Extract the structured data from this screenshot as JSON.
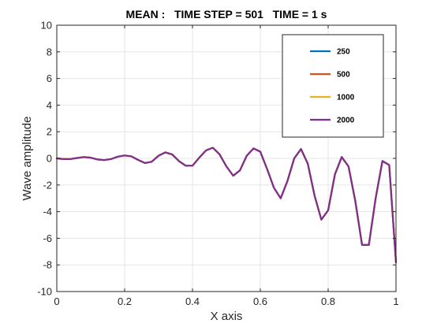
{
  "chart_data": {
    "type": "line",
    "title": "MEAN :   TIME STEP = 501   TIME = 1 s",
    "xlabel": "X axis",
    "ylabel": "Wave amplitude",
    "xlim": [
      0,
      1
    ],
    "ylim": [
      -10,
      10
    ],
    "xticks": [
      0,
      0.2,
      0.4,
      0.6,
      0.8,
      1
    ],
    "xtick_labels": [
      "0",
      "0.2",
      "0.4",
      "0.6",
      "0.8",
      "1"
    ],
    "yticks": [
      -10,
      -8,
      -6,
      -4,
      -2,
      0,
      2,
      4,
      6,
      8,
      10
    ],
    "ytick_labels": [
      "-10",
      "-8",
      "-6",
      "-4",
      "-2",
      "0",
      "2",
      "4",
      "6",
      "8",
      "10"
    ],
    "grid": true,
    "legend_position": "top-right",
    "x": [
      0,
      0.02,
      0.04,
      0.06,
      0.08,
      0.1,
      0.12,
      0.14,
      0.16,
      0.18,
      0.2,
      0.22,
      0.24,
      0.26,
      0.28,
      0.3,
      0.32,
      0.34,
      0.36,
      0.38,
      0.4,
      0.42,
      0.44,
      0.46,
      0.48,
      0.5,
      0.52,
      0.54,
      0.56,
      0.58,
      0.6,
      0.62,
      0.64,
      0.66,
      0.68,
      0.7,
      0.72,
      0.74,
      0.76,
      0.78,
      0.8,
      0.82,
      0.84,
      0.86,
      0.88,
      0.9,
      0.92,
      0.94,
      0.96,
      0.98,
      1.0
    ],
    "series": [
      {
        "name": "250",
        "color": "#0072BD",
        "values": [
          0,
          -0.05,
          -0.05,
          0.03,
          0.1,
          0.05,
          -0.08,
          -0.13,
          -0.05,
          0.13,
          0.22,
          0.15,
          -0.12,
          -0.35,
          -0.25,
          0.2,
          0.45,
          0.3,
          -0.2,
          -0.55,
          -0.55,
          0.05,
          0.6,
          0.8,
          0.3,
          -0.6,
          -1.3,
          -0.9,
          0.2,
          0.75,
          0.5,
          -0.8,
          -2.2,
          -3.0,
          -1.7,
          0.0,
          0.7,
          -0.4,
          -2.8,
          -4.6,
          -3.9,
          -1.2,
          0.1,
          -0.6,
          -3.2,
          -6.5,
          -6.5,
          -3.0,
          -0.2,
          -0.5,
          -7.8
        ]
      },
      {
        "name": "500",
        "color": "#D95319",
        "values": [
          0,
          -0.05,
          -0.05,
          0.03,
          0.1,
          0.05,
          -0.08,
          -0.13,
          -0.05,
          0.13,
          0.22,
          0.15,
          -0.12,
          -0.35,
          -0.25,
          0.2,
          0.45,
          0.3,
          -0.2,
          -0.55,
          -0.55,
          0.05,
          0.6,
          0.8,
          0.3,
          -0.6,
          -1.3,
          -0.9,
          0.2,
          0.75,
          0.5,
          -0.8,
          -2.2,
          -3.0,
          -1.7,
          0.0,
          0.7,
          -0.4,
          -2.8,
          -4.6,
          -3.9,
          -1.2,
          0.1,
          -0.6,
          -3.2,
          -6.5,
          -6.5,
          -3.0,
          -0.2,
          -0.5,
          -7.8
        ]
      },
      {
        "name": "1000",
        "color": "#EDB120",
        "values": [
          0,
          -0.05,
          -0.05,
          0.03,
          0.1,
          0.05,
          -0.08,
          -0.13,
          -0.05,
          0.13,
          0.22,
          0.15,
          -0.12,
          -0.35,
          -0.25,
          0.2,
          0.45,
          0.3,
          -0.2,
          -0.55,
          -0.55,
          0.05,
          0.6,
          0.8,
          0.3,
          -0.6,
          -1.3,
          -0.9,
          0.2,
          0.75,
          0.5,
          -0.8,
          -2.2,
          -3.0,
          -1.7,
          0.0,
          0.7,
          -0.4,
          -2.8,
          -4.6,
          -3.9,
          -1.2,
          0.1,
          -0.6,
          -3.2,
          -6.5,
          -6.5,
          -3.0,
          -0.2,
          -0.5,
          -7.8
        ]
      },
      {
        "name": "2000",
        "color": "#7E2F8E",
        "values": [
          0,
          -0.05,
          -0.05,
          0.03,
          0.1,
          0.05,
          -0.08,
          -0.13,
          -0.05,
          0.13,
          0.22,
          0.15,
          -0.12,
          -0.35,
          -0.25,
          0.2,
          0.45,
          0.3,
          -0.2,
          -0.55,
          -0.55,
          0.05,
          0.6,
          0.8,
          0.3,
          -0.6,
          -1.3,
          -0.9,
          0.2,
          0.75,
          0.5,
          -0.8,
          -2.2,
          -3.0,
          -1.7,
          0.0,
          0.7,
          -0.4,
          -2.8,
          -4.6,
          -3.9,
          -1.2,
          0.1,
          -0.6,
          -3.2,
          -6.5,
          -6.5,
          -3.0,
          -0.2,
          -0.5,
          -7.8
        ]
      }
    ]
  }
}
